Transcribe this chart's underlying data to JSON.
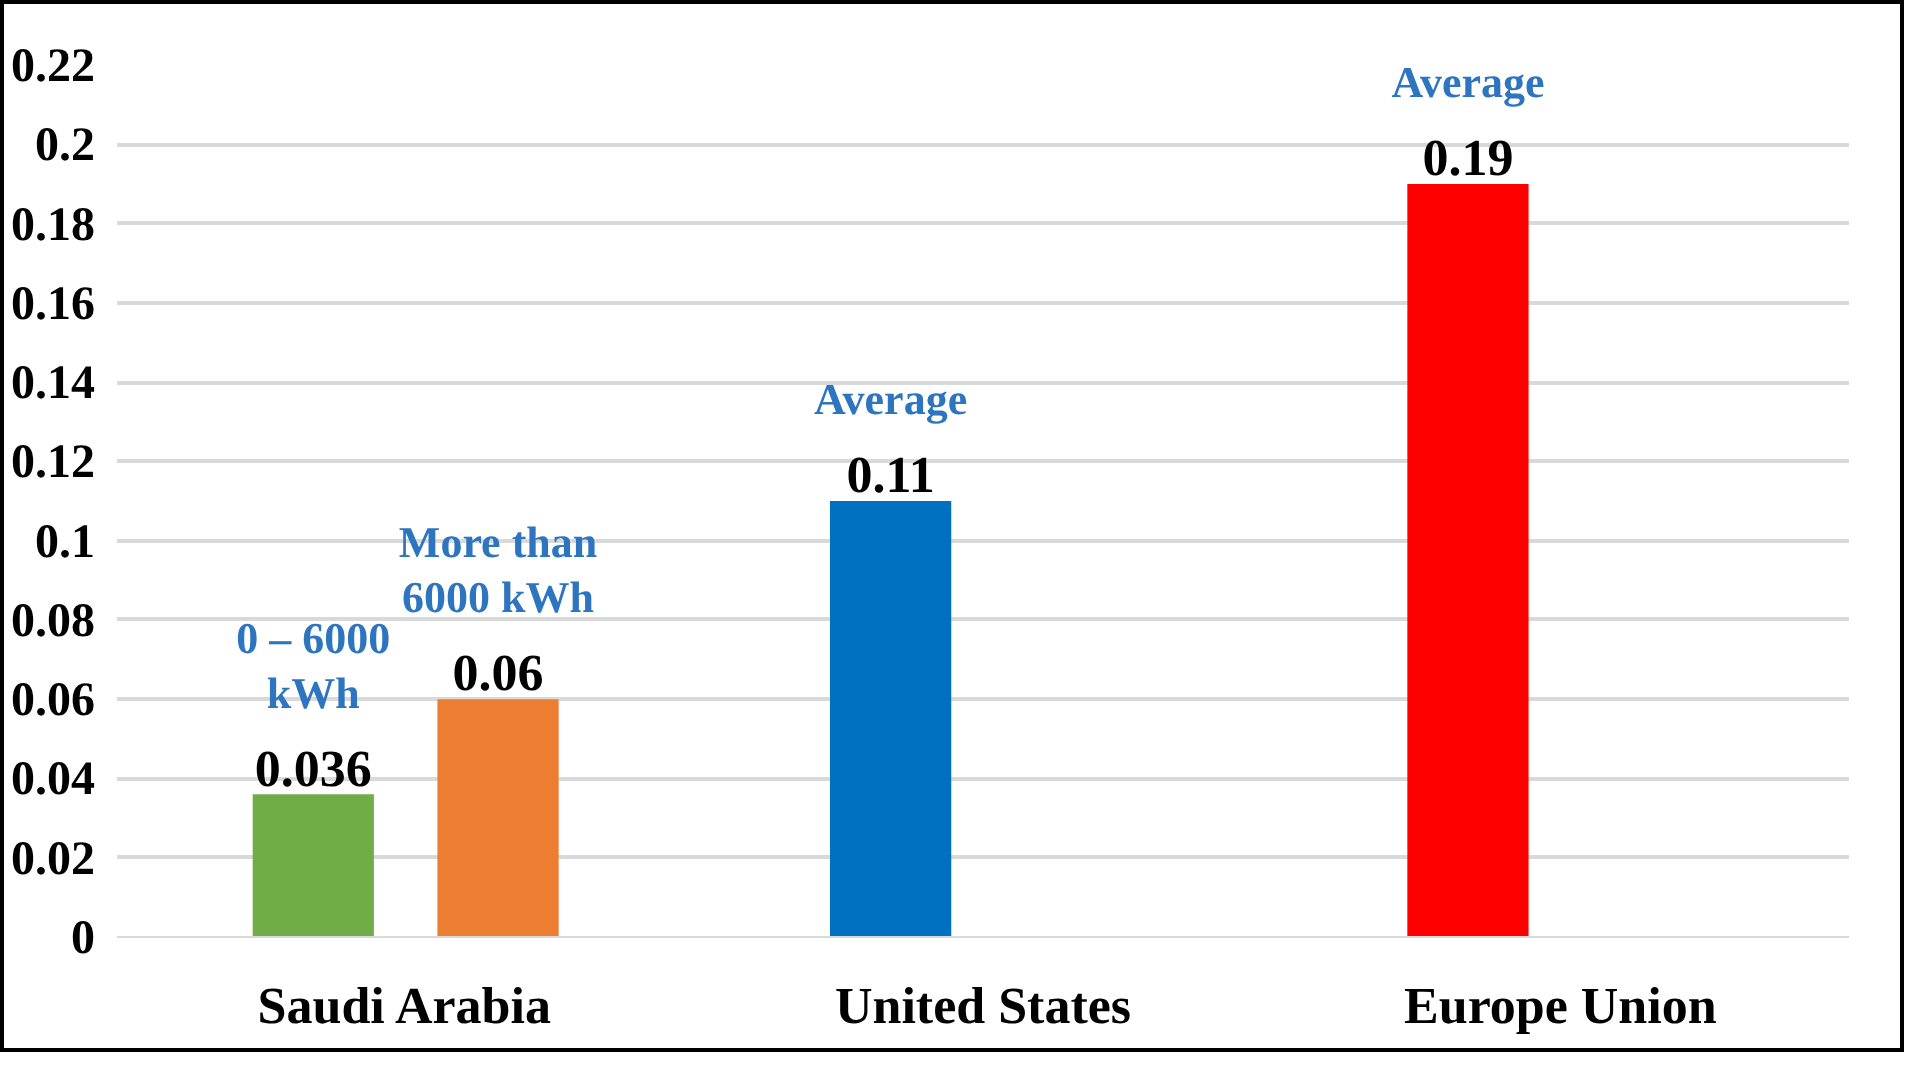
{
  "chart_data": {
    "type": "bar",
    "categories": [
      "Saudi Arabia",
      "United States",
      "Europe Union"
    ],
    "series": [
      {
        "color": "#70ad47",
        "colors": [
          "#70ad47",
          "#0070c0",
          "#ff0000"
        ],
        "values": [
          0.036,
          0.11,
          0.19
        ]
      },
      {
        "color": "#ed7d31",
        "values": [
          0.06,
          null,
          null
        ]
      }
    ],
    "ylim": [
      0,
      0.22
    ],
    "yticks": [
      0,
      0.02,
      0.04,
      0.06,
      0.08,
      0.1,
      0.12,
      0.14,
      0.16,
      0.18,
      0.2,
      0.22
    ],
    "grid": "y",
    "data_labels": true,
    "annotations": [
      "0 – 6000\nkWh",
      "More than\n6000 kWh",
      "Average",
      "Average"
    ]
  }
}
